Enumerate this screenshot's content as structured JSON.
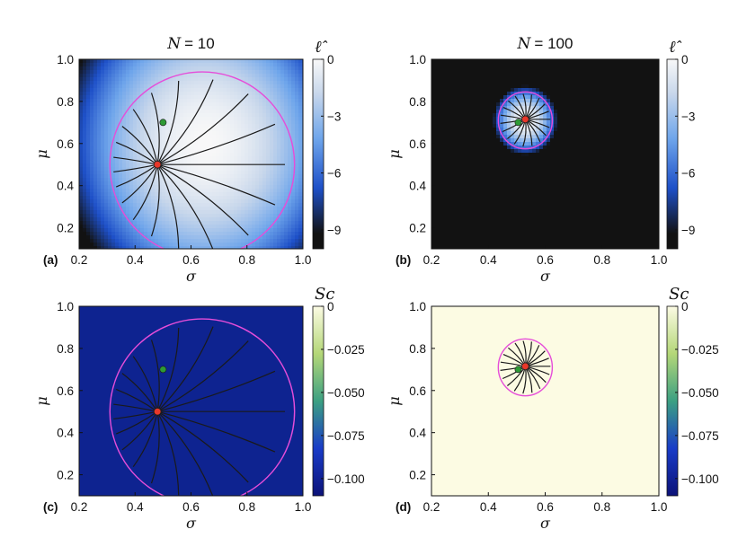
{
  "chart_data": [
    {
      "panel_label": "(a)",
      "type": "heatmap",
      "title": "N = 10",
      "title_var": "N",
      "title_val": "= 10",
      "xlabel": "σ",
      "ylabel": "μ",
      "xlim": [
        0.2,
        1.0
      ],
      "ylim": [
        0.1,
        1.0
      ],
      "xticks": [
        "0.2",
        "0.4",
        "0.6",
        "0.8",
        "1.0"
      ],
      "yticks": [
        "0.2",
        "0.4",
        "0.6",
        "0.8",
        "1.0"
      ],
      "colorbar": {
        "title": "ℓ̂",
        "range": [
          -10,
          0
        ],
        "ticks": [
          "0",
          "−3",
          "−6",
          "−9"
        ],
        "colormap": "black-blue-white"
      },
      "field": {
        "kind": "likelihood",
        "center": [
          0.65,
          0.6
        ],
        "sigma_scale": 0.25,
        "mu_scale": 0.38,
        "min": -10
      },
      "boundary_circle": {
        "center": [
          0.64,
          0.5
        ],
        "rx": 0.33,
        "ry": 0.44,
        "color": "#e64dd9"
      },
      "start_point": {
        "sigma": 0.48,
        "mu": 0.5,
        "color": "#e8382a"
      },
      "true_point": {
        "sigma": 0.5,
        "mu": 0.7,
        "color": "#2e9a35"
      },
      "geodesics": {
        "count": 19,
        "color": "#1a1a1a"
      }
    },
    {
      "panel_label": "(b)",
      "type": "heatmap",
      "title": "N = 100",
      "title_var": "N",
      "title_val": "= 100",
      "xlabel": "σ",
      "ylabel": "μ",
      "xlim": [
        0.2,
        1.0
      ],
      "ylim": [
        0.1,
        1.0
      ],
      "xticks": [
        "0.2",
        "0.4",
        "0.6",
        "0.8",
        "1.0"
      ],
      "yticks": [
        "0.2",
        "0.4",
        "0.6",
        "0.8",
        "1.0"
      ],
      "colorbar": {
        "title": "ℓ̂",
        "range": [
          -10,
          0
        ],
        "ticks": [
          "0",
          "−3",
          "−6",
          "−9"
        ],
        "colormap": "black-blue-white"
      },
      "field": {
        "kind": "likelihood",
        "center": [
          0.53,
          0.71
        ],
        "sigma_scale": 0.055,
        "mu_scale": 0.08,
        "min": -10
      },
      "boundary_circle": {
        "center": [
          0.53,
          0.71
        ],
        "rx": 0.095,
        "ry": 0.135,
        "color": "#e64dd9"
      },
      "start_point": {
        "sigma": 0.53,
        "mu": 0.715,
        "color": "#e8382a"
      },
      "true_point": {
        "sigma": 0.505,
        "mu": 0.7,
        "color": "#2e9a35"
      },
      "geodesics": {
        "count": 19,
        "color": "#1a1a1a"
      }
    },
    {
      "panel_label": "(c)",
      "type": "heatmap",
      "title": "",
      "xlabel": "σ",
      "ylabel": "μ",
      "xlim": [
        0.2,
        1.0
      ],
      "ylim": [
        0.1,
        1.0
      ],
      "xticks": [
        "0.2",
        "0.4",
        "0.6",
        "0.8",
        "1.0"
      ],
      "yticks": [
        "0.2",
        "0.4",
        "0.6",
        "0.8",
        "1.0"
      ],
      "colorbar": {
        "title": "Sc",
        "range": [
          -0.11,
          0
        ],
        "ticks": [
          "0",
          "−0.025",
          "−0.050",
          "−0.075",
          "−0.100"
        ],
        "colormap": "navy-green-cream"
      },
      "field": {
        "kind": "uniform",
        "color": "#0e2390"
      },
      "boundary_circle": {
        "center": [
          0.64,
          0.5
        ],
        "rx": 0.33,
        "ry": 0.44,
        "color": "#e64dd9"
      },
      "start_point": {
        "sigma": 0.48,
        "mu": 0.5,
        "color": "#e8382a"
      },
      "true_point": {
        "sigma": 0.5,
        "mu": 0.7,
        "color": "#2e9a35"
      },
      "geodesics": {
        "count": 19,
        "color": "#1a1a1a"
      }
    },
    {
      "panel_label": "(d)",
      "type": "heatmap",
      "title": "",
      "xlabel": "σ",
      "ylabel": "μ",
      "xlim": [
        0.2,
        1.0
      ],
      "ylim": [
        0.1,
        1.0
      ],
      "xticks": [
        "0.2",
        "0.4",
        "0.6",
        "0.8",
        "1.0"
      ],
      "yticks": [
        "0.2",
        "0.4",
        "0.6",
        "0.8",
        "1.0"
      ],
      "colorbar": {
        "title": "Sc",
        "range": [
          -0.11,
          0
        ],
        "ticks": [
          "0",
          "−0.025",
          "−0.050",
          "−0.075",
          "−0.100"
        ],
        "colormap": "navy-green-cream"
      },
      "field": {
        "kind": "uniform",
        "color": "#fcfbe3"
      },
      "boundary_circle": {
        "center": [
          0.53,
          0.71
        ],
        "rx": 0.095,
        "ry": 0.135,
        "color": "#e64dd9"
      },
      "start_point": {
        "sigma": 0.53,
        "mu": 0.715,
        "color": "#e8382a"
      },
      "true_point": {
        "sigma": 0.505,
        "mu": 0.7,
        "color": "#2e9a35"
      },
      "geodesics": {
        "count": 19,
        "color": "#1a1a1a"
      }
    }
  ]
}
